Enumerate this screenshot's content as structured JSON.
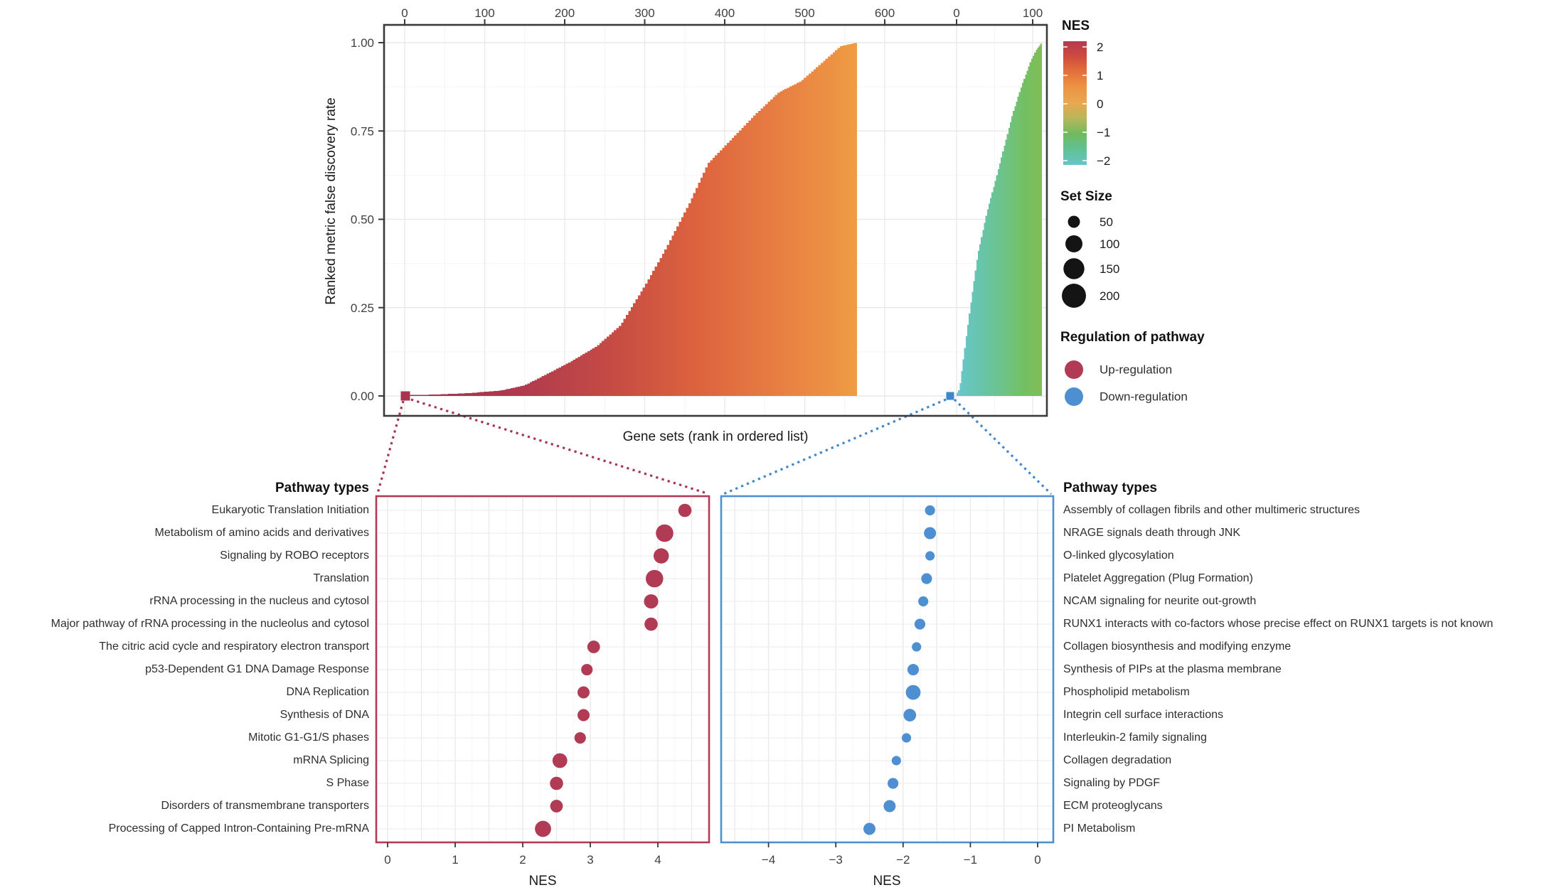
{
  "chart_data": [
    {
      "type": "bar",
      "name": "gsea-ranked-fdr-overview",
      "xlabel": "Gene sets (rank in ordered list)",
      "ylabel": "Ranked metric false discovery rate",
      "y_ticks": [
        "0.00",
        "0.25",
        "0.50",
        "0.75",
        "1.00"
      ],
      "grid": true,
      "facets": [
        {
          "name": "up-regulated-gene-sets",
          "x_ticks": [
            0,
            100,
            200,
            300,
            400,
            500,
            600
          ],
          "x_max": 565,
          "curve": [
            [
              0,
              0.002
            ],
            [
              40,
              0.004
            ],
            [
              80,
              0.008
            ],
            [
              120,
              0.015
            ],
            [
              150,
              0.03
            ],
            [
              185,
              0.07
            ],
            [
              210,
              0.1
            ],
            [
              240,
              0.14
            ],
            [
              270,
              0.2
            ],
            [
              300,
              0.31
            ],
            [
              325,
              0.41
            ],
            [
              355,
              0.54
            ],
            [
              380,
              0.66
            ],
            [
              410,
              0.73
            ],
            [
              440,
              0.8
            ],
            [
              468,
              0.86
            ],
            [
              495,
              0.89
            ],
            [
              515,
              0.93
            ],
            [
              530,
              0.96
            ],
            [
              545,
              0.99
            ],
            [
              565,
              1.0
            ]
          ],
          "color_stops": [
            [
              0,
              "#9e3050"
            ],
            [
              0.25,
              "#b03a4e"
            ],
            [
              0.45,
              "#c44a45"
            ],
            [
              0.65,
              "#dd633e"
            ],
            [
              0.85,
              "#e88243"
            ],
            [
              1,
              "#ee9c43"
            ]
          ],
          "marker_color": "#a93351"
        },
        {
          "name": "down-regulated-gene-sets",
          "x_ticks": [
            0,
            100
          ],
          "x_max": 112,
          "curve": [
            [
              0,
              0.005
            ],
            [
              4,
              0.02
            ],
            [
              10,
              0.12
            ],
            [
              18,
              0.25
            ],
            [
              28,
              0.4
            ],
            [
              40,
              0.52
            ],
            [
              50,
              0.6
            ],
            [
              62,
              0.7
            ],
            [
              74,
              0.8
            ],
            [
              86,
              0.88
            ],
            [
              98,
              0.95
            ],
            [
              105,
              0.98
            ],
            [
              112,
              1.0
            ]
          ],
          "color_stops": [
            [
              0,
              "#69c6ce"
            ],
            [
              0.3,
              "#67c4a8"
            ],
            [
              0.55,
              "#6ec388"
            ],
            [
              0.8,
              "#74bf62"
            ],
            [
              1,
              "#7fbe55"
            ]
          ],
          "marker_color": "#3f87cc"
        }
      ]
    },
    {
      "type": "scatter",
      "name": "up-regulated-pathways",
      "header": "Pathway types",
      "xlabel": "NES",
      "x_ticks": [
        0,
        1,
        2,
        3,
        4
      ],
      "color": "#b13a55",
      "rows": [
        {
          "label": "Eukaryotic Translation Initiation",
          "nes": 4.4,
          "set_size": 60
        },
        {
          "label": "Metabolism of amino acids and derivatives",
          "nes": 4.1,
          "set_size": 105
        },
        {
          "label": "Signaling by ROBO receptors",
          "nes": 4.05,
          "set_size": 80
        },
        {
          "label": "Translation",
          "nes": 3.95,
          "set_size": 105
        },
        {
          "label": "rRNA processing in the nucleus and cytosol",
          "nes": 3.9,
          "set_size": 70
        },
        {
          "label": "Major pathway of rRNA processing in the nucleolus and cytosol",
          "nes": 3.9,
          "set_size": 60
        },
        {
          "label": "The citric acid cycle and respiratory electron transport",
          "nes": 3.05,
          "set_size": 55
        },
        {
          "label": "p53-Dependent G1 DNA Damage Response",
          "nes": 2.95,
          "set_size": 45
        },
        {
          "label": "DNA Replication",
          "nes": 2.9,
          "set_size": 50
        },
        {
          "label": "Synthesis of DNA",
          "nes": 2.9,
          "set_size": 50
        },
        {
          "label": "Mitotic G1-G1/S phases",
          "nes": 2.85,
          "set_size": 45
        },
        {
          "label": "mRNA Splicing",
          "nes": 2.55,
          "set_size": 75
        },
        {
          "label": "S Phase",
          "nes": 2.5,
          "set_size": 60
        },
        {
          "label": "Disorders of transmembrane transporters",
          "nes": 2.5,
          "set_size": 55
        },
        {
          "label": "Processing of Capped Intron-Containing Pre-mRNA",
          "nes": 2.3,
          "set_size": 90
        }
      ]
    },
    {
      "type": "scatter",
      "name": "down-regulated-pathways",
      "header": "Pathway types",
      "xlabel": "NES",
      "x_ticks": [
        -4,
        -3,
        -2,
        -1,
        0
      ],
      "color": "#4d8fd1",
      "rows": [
        {
          "label": "Assembly of collagen fibrils and other multimeric structures",
          "nes": -1.6,
          "set_size": 35
        },
        {
          "label": "NRAGE signals death through JNK",
          "nes": -1.6,
          "set_size": 50
        },
        {
          "label": "O-linked glycosylation",
          "nes": -1.6,
          "set_size": 30
        },
        {
          "label": "Platelet Aggregation (Plug Formation)",
          "nes": -1.65,
          "set_size": 40
        },
        {
          "label": "NCAM signaling for neurite out-growth",
          "nes": -1.7,
          "set_size": 35
        },
        {
          "label": "RUNX1 interacts with co-factors whose precise effect on RUNX1 targets is not known",
          "nes": -1.75,
          "set_size": 40
        },
        {
          "label": "Collagen biosynthesis and modifying enzyme",
          "nes": -1.8,
          "set_size": 30
        },
        {
          "label": "Synthesis of PIPs at the plasma membrane",
          "nes": -1.85,
          "set_size": 45
        },
        {
          "label": "Phospholipid metabolism",
          "nes": -1.85,
          "set_size": 75
        },
        {
          "label": "Integrin cell surface interactions",
          "nes": -1.9,
          "set_size": 55
        },
        {
          "label": "Interleukin-2 family signaling",
          "nes": -1.95,
          "set_size": 30
        },
        {
          "label": "Collagen degradation",
          "nes": -2.1,
          "set_size": 30
        },
        {
          "label": "Signaling by PDGF",
          "nes": -2.15,
          "set_size": 40
        },
        {
          "label": "ECM proteoglycans",
          "nes": -2.2,
          "set_size": 50
        },
        {
          "label": "PI Metabolism",
          "nes": -2.5,
          "set_size": 50
        }
      ]
    }
  ],
  "legends": {
    "nes": {
      "title": "NES",
      "ticks": [
        2,
        1,
        0,
        -1,
        -2
      ],
      "gradient": [
        [
          0,
          "#b23950"
        ],
        [
          0.12,
          "#cf4a3f"
        ],
        [
          0.25,
          "#e4713b"
        ],
        [
          0.37,
          "#ec9444"
        ],
        [
          0.5,
          "#e7a84f"
        ],
        [
          0.62,
          "#b9b65a"
        ],
        [
          0.75,
          "#70ba5e"
        ],
        [
          0.87,
          "#61c193"
        ],
        [
          1,
          "#65c5c8"
        ]
      ]
    },
    "size": {
      "title": "Set Size",
      "entries": [
        50,
        100,
        150,
        200
      ]
    },
    "regulation": {
      "title": "Regulation of pathway",
      "items": [
        {
          "label": "Up-regulation",
          "color": "#b13a55"
        },
        {
          "label": "Down-regulation",
          "color": "#4d8fd1"
        }
      ]
    }
  }
}
